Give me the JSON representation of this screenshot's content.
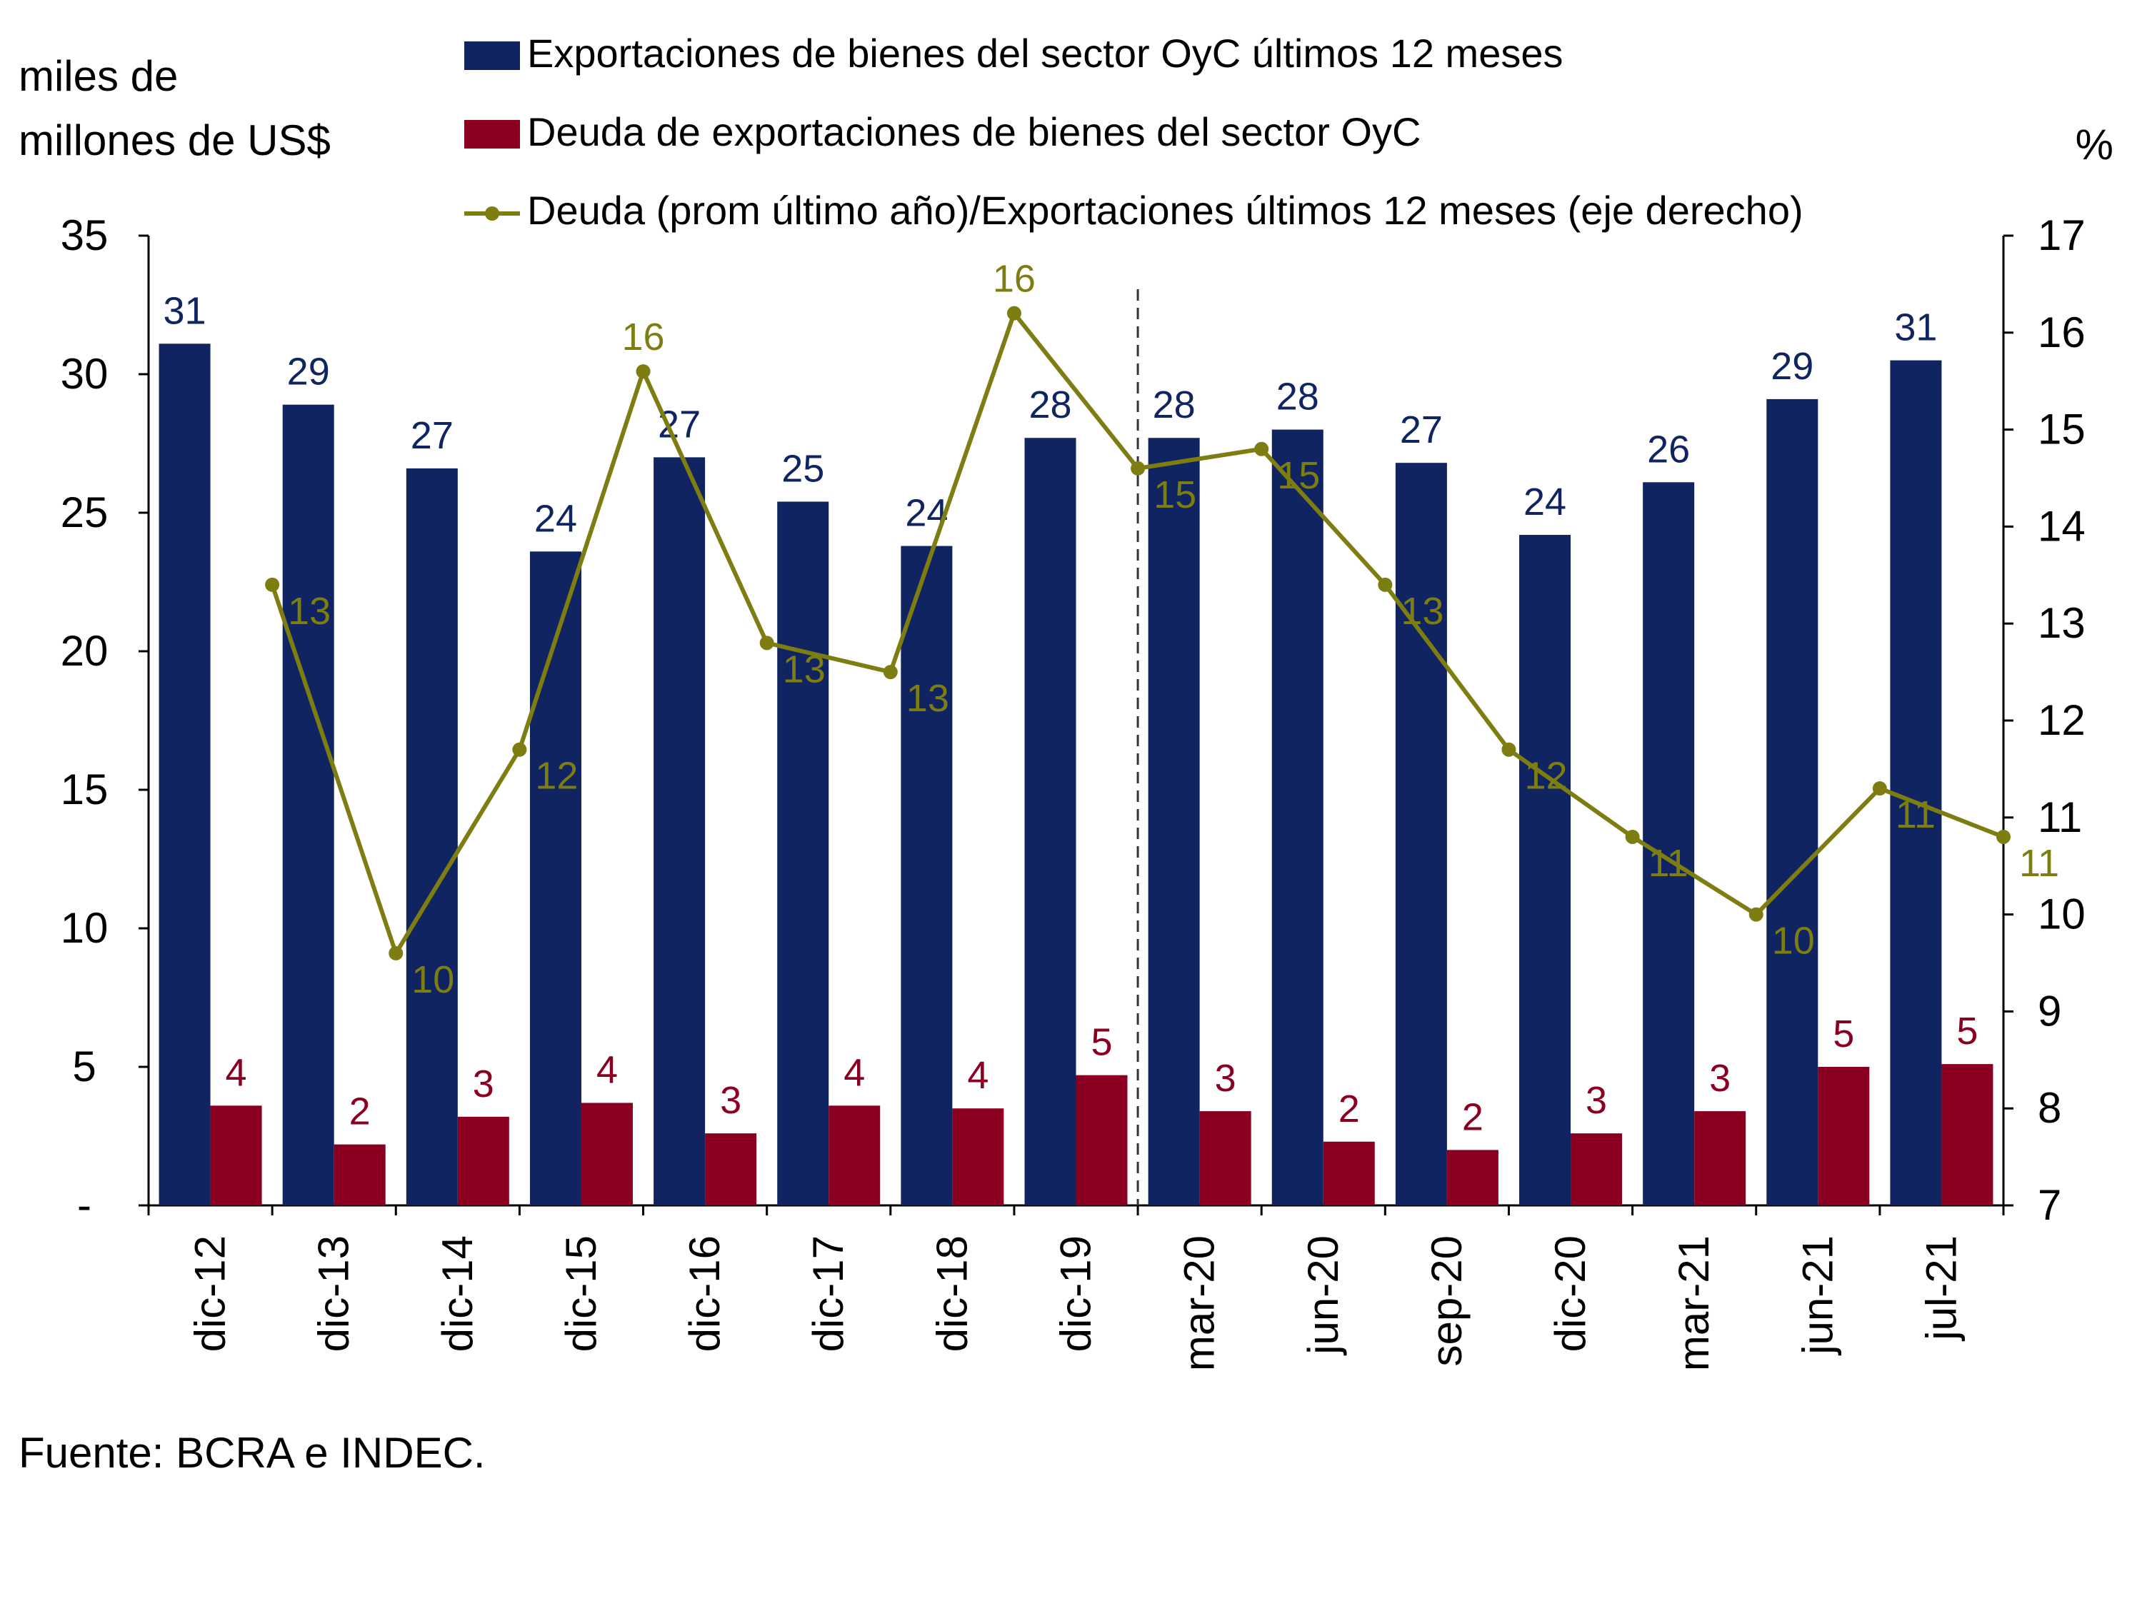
{
  "chart_data": {
    "type": "bar",
    "categories": [
      "dic-12",
      "dic-13",
      "dic-14",
      "dic-15",
      "dic-16",
      "dic-17",
      "dic-18",
      "dic-19",
      "mar-20",
      "jun-20",
      "sep-20",
      "dic-20",
      "mar-21",
      "jun-21",
      "jul-21"
    ],
    "ylabel": [
      "miles de",
      "millones de US$"
    ],
    "y2label": "%",
    "ylim": [
      0,
      35
    ],
    "y2lim": [
      7,
      17
    ],
    "yticks": [
      "-",
      "5",
      "10",
      "15",
      "20",
      "25",
      "30",
      "35"
    ],
    "y2ticks": [
      "7",
      "8",
      "9",
      "10",
      "11",
      "12",
      "13",
      "14",
      "15",
      "16",
      "17"
    ],
    "legend": "top",
    "grid": false,
    "divider_after": "dic-19",
    "series": [
      {
        "name": "Exportaciones de bienes del sector OyC últimos 12 meses",
        "kind": "bar",
        "axis": "left",
        "color": "#0f2460",
        "values": [
          31.1,
          28.9,
          26.6,
          23.6,
          27.0,
          25.4,
          23.8,
          27.7,
          27.7,
          28.0,
          26.8,
          24.2,
          26.1,
          29.1,
          30.5
        ],
        "labels": [
          "31",
          "29",
          "27",
          "24",
          "27",
          "25",
          "24",
          "28",
          "28",
          "28",
          "27",
          "24",
          "26",
          "29",
          "31"
        ]
      },
      {
        "name": "Deuda de exportaciones de bienes del sector OyC",
        "kind": "bar",
        "axis": "left",
        "color": "#8b0021",
        "values": [
          3.6,
          2.2,
          3.2,
          3.7,
          2.6,
          3.6,
          3.5,
          4.7,
          3.4,
          2.3,
          2.0,
          2.6,
          3.4,
          5.0,
          5.1
        ],
        "labels": [
          "4",
          "2",
          "3",
          "4",
          "3",
          "4",
          "4",
          "5",
          "3",
          "2",
          "2",
          "3",
          "3",
          "5",
          "5"
        ]
      },
      {
        "name": "Deuda (prom último año)/Exportaciones últimos 12 meses (eje derecho)",
        "kind": "line",
        "axis": "right",
        "color": "#7d7d12",
        "values": [
          13.4,
          9.6,
          11.7,
          15.6,
          12.8,
          12.5,
          16.2,
          14.6,
          14.8,
          13.4,
          11.7,
          10.8,
          10.0,
          11.3,
          10.8
        ],
        "labels": [
          "13",
          "10",
          "12",
          "16",
          "13",
          "13",
          "16",
          "15",
          "15",
          "13",
          "12",
          "11",
          "10",
          "11",
          "11"
        ]
      }
    ]
  },
  "source": "Fuente: BCRA e INDEC."
}
